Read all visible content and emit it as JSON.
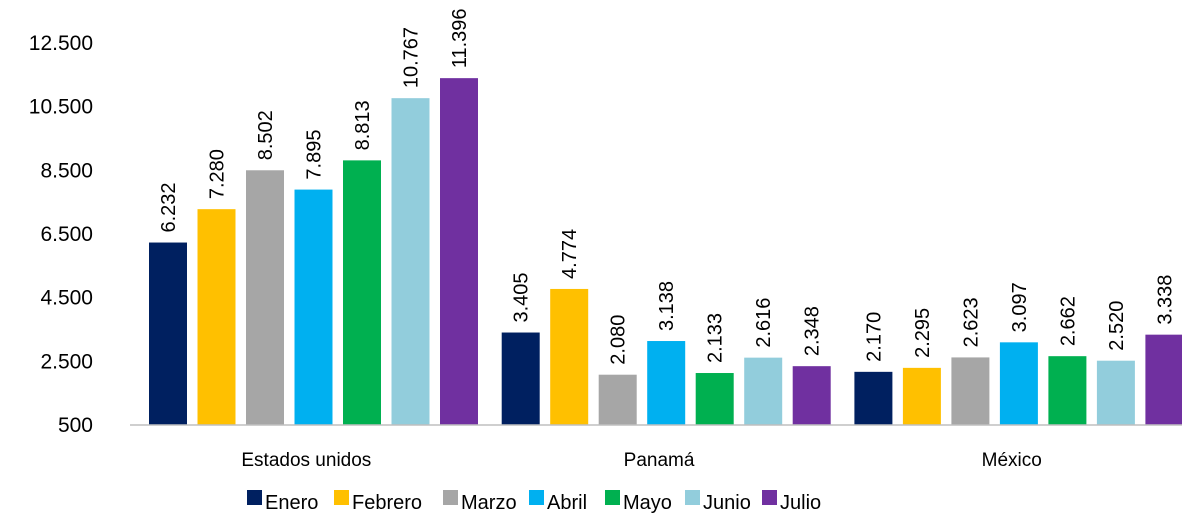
{
  "chart_data": {
    "type": "bar",
    "title": "",
    "xlabel": "",
    "ylabel": "",
    "ylim": [
      500,
      12500
    ],
    "yticks": [
      500,
      2500,
      4500,
      6500,
      8500,
      10500,
      12500
    ],
    "ytick_labels": [
      "500",
      "2.500",
      "4.500",
      "6.500",
      "8.500",
      "10.500",
      "12.500"
    ],
    "grid": false,
    "legend_position": "bottom",
    "categories": [
      "Estados unidos",
      "Panamá",
      "México"
    ],
    "series": [
      {
        "name": "Enero",
        "color": "#002060",
        "values": [
          6232,
          3405,
          2170
        ],
        "labels": [
          "6.232",
          "3.405",
          "2.170"
        ]
      },
      {
        "name": "Febrero",
        "color": "#FFC000",
        "values": [
          7280,
          4774,
          2295
        ],
        "labels": [
          "7.280",
          "4.774",
          "2.295"
        ]
      },
      {
        "name": "Marzo",
        "color": "#A6A6A6",
        "values": [
          8502,
          2080,
          2623
        ],
        "labels": [
          "8.502",
          "2.080",
          "2.623"
        ]
      },
      {
        "name": "Abril",
        "color": "#00B0F0",
        "values": [
          7895,
          3138,
          3097
        ],
        "labels": [
          "7.895",
          "3.138",
          "3.097"
        ]
      },
      {
        "name": "Mayo",
        "color": "#00B050",
        "values": [
          8813,
          2133,
          2662
        ],
        "labels": [
          "8.813",
          "2.133",
          "2.662"
        ]
      },
      {
        "name": "Junio",
        "color": "#92CDDC",
        "values": [
          10767,
          2616,
          2520
        ],
        "labels": [
          "10.767",
          "2.616",
          "2.520"
        ]
      },
      {
        "name": "Julio",
        "color": "#7030A0",
        "values": [
          11396,
          2348,
          3338
        ],
        "labels": [
          "11.396",
          "2.348",
          "3.338"
        ]
      }
    ]
  }
}
